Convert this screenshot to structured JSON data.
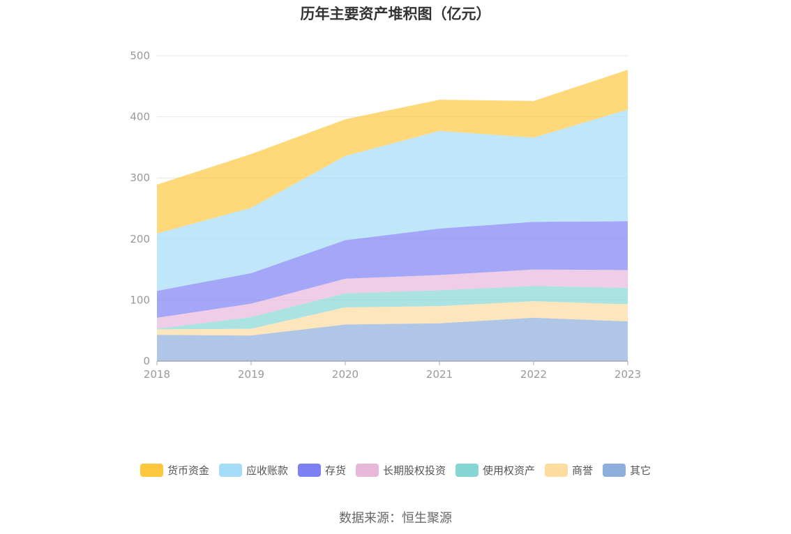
{
  "chart_data": {
    "type": "area",
    "stacked": true,
    "title": "历年主要资产堆积图（亿元）",
    "categories": [
      "2018",
      "2019",
      "2020",
      "2021",
      "2022",
      "2023"
    ],
    "ylim": [
      0,
      500
    ],
    "yticks": [
      "0",
      "100",
      "200",
      "300",
      "400",
      "500"
    ],
    "grid": true,
    "legend_position": "bottom",
    "series": [
      {
        "name": "其它",
        "color": "#8eaedc",
        "values": [
          43,
          42,
          60,
          62,
          71,
          65
        ]
      },
      {
        "name": "商誉",
        "color": "#fddca0",
        "values": [
          9,
          11,
          28,
          28,
          27,
          28
        ]
      },
      {
        "name": "使用权资产",
        "color": "#87d6d6",
        "values": [
          1,
          19,
          23,
          26,
          25,
          27
        ]
      },
      {
        "name": "长期股权投资",
        "color": "#e8b8db",
        "values": [
          18,
          22,
          24,
          25,
          27,
          29
        ]
      },
      {
        "name": "存货",
        "color": "#7d80f5",
        "values": [
          44,
          50,
          63,
          76,
          78,
          80
        ]
      },
      {
        "name": "应收账款",
        "color": "#a5dcf8",
        "values": [
          94,
          107,
          138,
          160,
          138,
          183
        ]
      },
      {
        "name": "货币资金",
        "color": "#fdc840",
        "values": [
          80,
          88,
          60,
          51,
          60,
          65
        ]
      }
    ]
  },
  "legend_order": [
    "货币资金",
    "应收账款",
    "存货",
    "长期股权投资",
    "使用权资产",
    "商誉",
    "其它"
  ],
  "source": "数据来源：恒生聚源"
}
